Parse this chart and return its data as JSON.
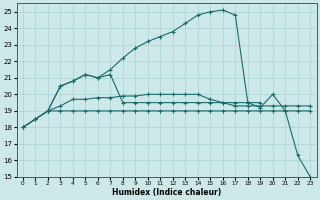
{
  "xlabel": "Humidex (Indice chaleur)",
  "bg_color": "#cce8e8",
  "grid_color": "#aad0d0",
  "line_color": "#1a6b6b",
  "xlim": [
    -0.5,
    23.5
  ],
  "ylim": [
    15,
    25.5
  ],
  "yticks": [
    15,
    16,
    17,
    18,
    19,
    20,
    21,
    22,
    23,
    24,
    25
  ],
  "xticks": [
    0,
    1,
    2,
    3,
    4,
    5,
    6,
    7,
    8,
    9,
    10,
    11,
    12,
    13,
    14,
    15,
    16,
    17,
    18,
    19,
    20,
    21,
    22,
    23
  ],
  "line1_x": [
    0,
    1,
    2,
    3,
    4,
    5,
    6,
    7,
    8,
    9,
    10,
    11,
    12,
    13,
    14,
    15,
    16,
    17,
    18,
    19,
    20,
    21,
    22,
    23
  ],
  "line1_y": [
    18.0,
    18.5,
    19.0,
    19.0,
    19.0,
    19.0,
    19.0,
    19.0,
    19.0,
    19.0,
    19.0,
    19.0,
    19.0,
    19.0,
    19.0,
    19.0,
    19.0,
    19.0,
    19.0,
    19.0,
    19.0,
    19.0,
    19.0,
    19.0
  ],
  "line2_x": [
    0,
    1,
    2,
    3,
    4,
    5,
    6,
    7,
    8,
    9,
    10,
    11,
    12,
    13,
    14,
    15,
    16,
    17,
    18,
    19
  ],
  "line2_y": [
    18.0,
    18.5,
    19.0,
    20.5,
    20.8,
    21.2,
    21.0,
    21.2,
    19.5,
    19.5,
    19.5,
    19.5,
    19.5,
    19.5,
    19.5,
    19.5,
    19.5,
    19.5,
    19.5,
    19.5
  ],
  "line3_x": [
    2,
    3,
    4,
    5,
    6,
    7,
    8,
    9,
    10,
    11,
    12,
    13,
    14,
    15,
    16,
    17,
    18,
    19,
    20,
    21,
    22,
    23
  ],
  "line3_y": [
    19.0,
    19.3,
    19.7,
    19.7,
    19.8,
    19.8,
    19.9,
    19.9,
    20.0,
    20.0,
    20.0,
    20.0,
    20.0,
    19.7,
    19.5,
    19.3,
    19.3,
    19.3,
    19.3,
    19.3,
    19.3,
    19.3
  ],
  "line4_x": [
    0,
    1,
    2,
    3,
    4,
    5,
    6,
    7,
    8,
    9,
    10,
    11,
    12,
    13,
    14,
    15,
    16,
    17,
    18,
    19,
    20,
    21,
    22,
    23
  ],
  "line4_y": [
    18.0,
    18.5,
    19.0,
    20.5,
    20.8,
    21.2,
    21.0,
    21.5,
    22.2,
    22.8,
    23.2,
    23.5,
    23.8,
    24.3,
    24.8,
    25.0,
    25.1,
    24.8,
    19.5,
    19.2,
    20.0,
    19.0,
    16.3,
    15.0
  ]
}
